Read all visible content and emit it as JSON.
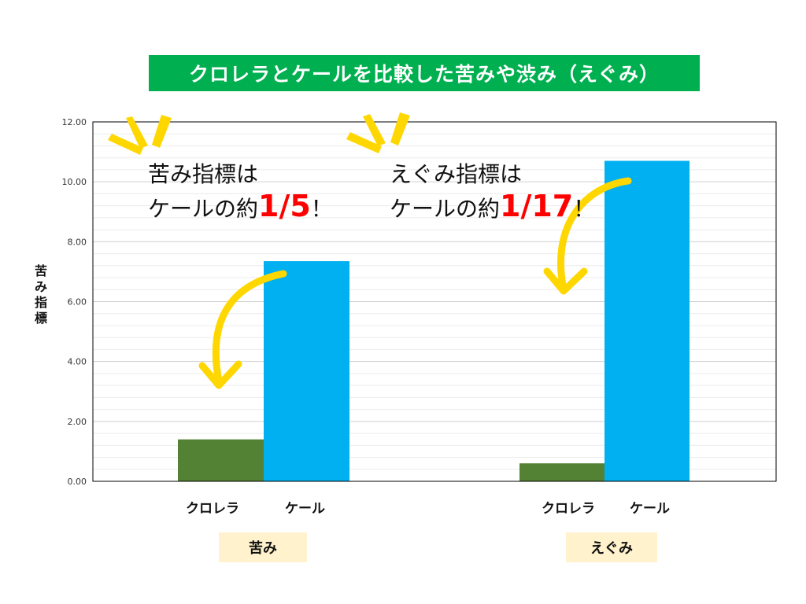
{
  "title": "クロレラとケールを比較した苦みや渋み（えぐみ）",
  "ylabel_chars": [
    "苦",
    "み",
    "指",
    "標"
  ],
  "annotations": [
    {
      "line1": "苦み指標は",
      "line2_prefix": "ケールの約",
      "highlight": "1/5",
      "suffix": "！"
    },
    {
      "line1": "えぐみ指標は",
      "line2_prefix": "ケールの約",
      "highlight": "1/17",
      "suffix": "！"
    }
  ],
  "groups": [
    "苦み",
    "えぐみ"
  ],
  "categories": [
    "クロレラ",
    "ケール"
  ],
  "colors": {
    "chlorella": "#548235",
    "kale": "#00b0f0",
    "title_bg": "#00b050",
    "highlight": "#ff0000",
    "arrow": "#ffd700",
    "group_label_bg": "#fff2cc"
  },
  "chart_data": {
    "type": "bar",
    "title": "クロレラとケールを比較した苦みや渋み（えぐみ）",
    "ylabel": "苦み指標",
    "groups": [
      "苦み",
      "えぐみ"
    ],
    "categories": [
      "クロレラ",
      "ケール"
    ],
    "series": [
      {
        "name": "クロレラ",
        "values": [
          1.4,
          0.6
        ]
      },
      {
        "name": "ケール",
        "values": [
          7.35,
          10.7
        ]
      }
    ],
    "yticks": [
      "0.00",
      "2.00",
      "4.00",
      "6.00",
      "8.00",
      "10.00",
      "12.00"
    ],
    "ylim": [
      0,
      12
    ],
    "grid": true
  }
}
